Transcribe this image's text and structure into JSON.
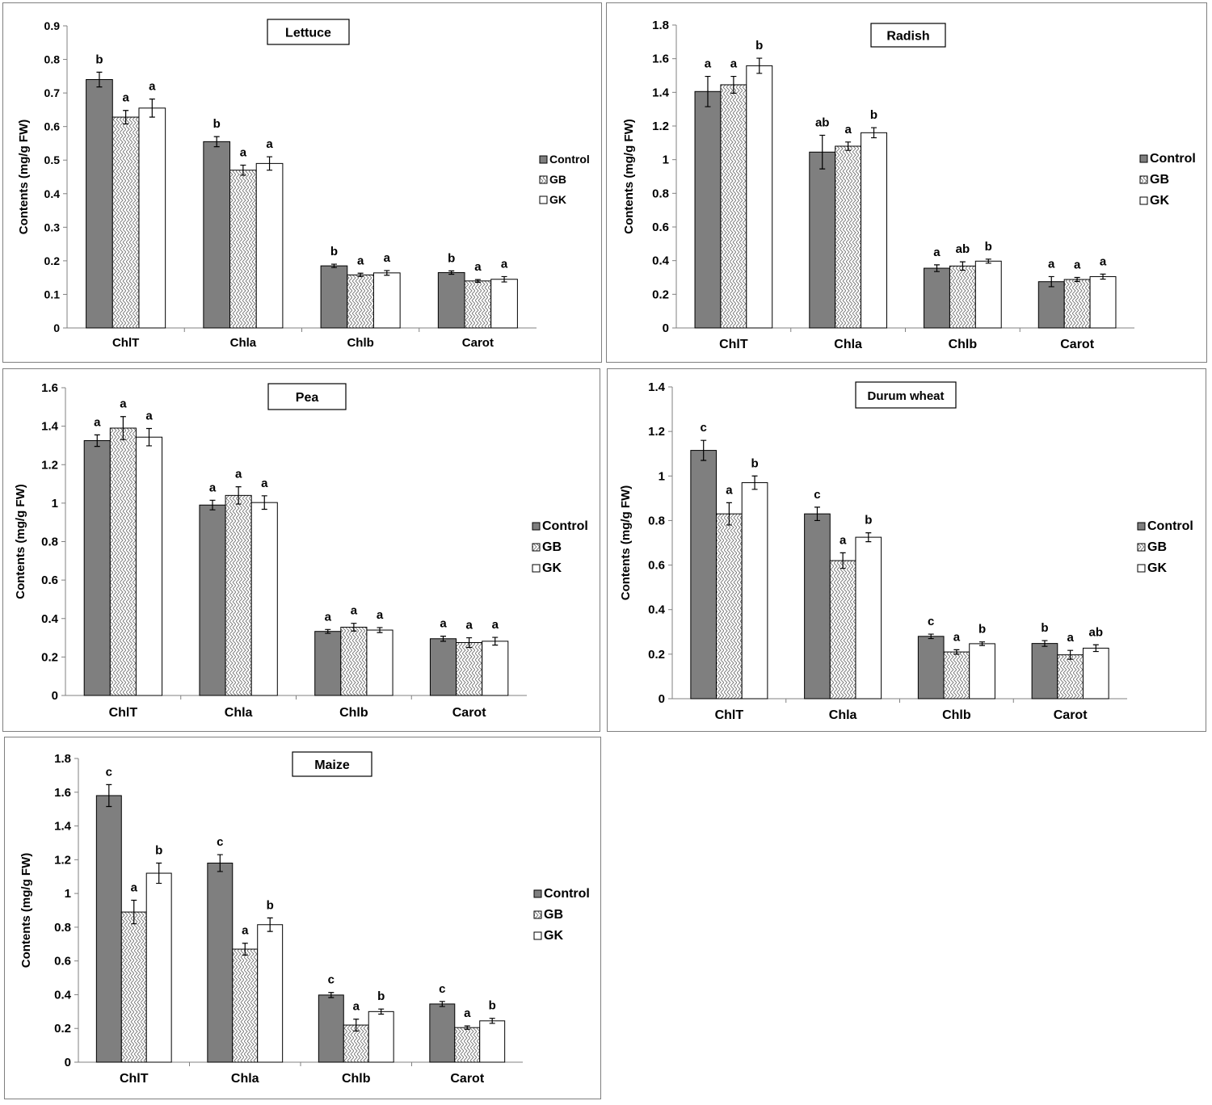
{
  "colors": {
    "control": "#7f7f7f",
    "gb": "#ffffff",
    "gk": "#ffffff",
    "axis": "#808080",
    "border": "#7f7f7f"
  },
  "chart_data": [
    {
      "type": "bar",
      "title": "Lettuce",
      "ylabel": "Contents (mg/g FW)",
      "xlabel": "",
      "ylim": [
        0,
        0.9
      ],
      "yticks": [
        "0",
        "0.1",
        "0.2",
        "0.3",
        "0.4",
        "0.5",
        "0.6",
        "0.7",
        "0.8",
        "0.9"
      ],
      "categories": [
        "ChlT",
        "Chla",
        "Chlb",
        "Carot"
      ],
      "legend": [
        "Control",
        "GB",
        "GK"
      ],
      "series": [
        {
          "name": "Control",
          "values": [
            0.74,
            0.555,
            0.185,
            0.165
          ],
          "errors": [
            0.022,
            0.015,
            0.005,
            0.005
          ],
          "labels": [
            "b",
            "b",
            "b",
            "b"
          ]
        },
        {
          "name": "GB",
          "values": [
            0.628,
            0.47,
            0.158,
            0.14
          ],
          "errors": [
            0.02,
            0.015,
            0.005,
            0.004
          ],
          "labels": [
            "a",
            "a",
            "a",
            "a"
          ]
        },
        {
          "name": "GK",
          "values": [
            0.655,
            0.49,
            0.164,
            0.145
          ],
          "errors": [
            0.027,
            0.02,
            0.007,
            0.008
          ],
          "labels": [
            "a",
            "a",
            "a",
            "a"
          ]
        }
      ]
    },
    {
      "type": "bar",
      "title": "Radish",
      "ylabel": "Contents (mg/g FW)",
      "xlabel": "",
      "ylim": [
        0,
        1.8
      ],
      "yticks": [
        "0",
        "0.2",
        "0.4",
        "0.6",
        "0.8",
        "1",
        "1.2",
        "1.4",
        "1.6",
        "1.8"
      ],
      "categories": [
        "ChlT",
        "Chla",
        "Chlb",
        "Carot"
      ],
      "legend": [
        "Control",
        "GB",
        "GK"
      ],
      "series": [
        {
          "name": "Control",
          "values": [
            1.405,
            1.045,
            0.355,
            0.275
          ],
          "errors": [
            0.09,
            0.1,
            0.02,
            0.03
          ],
          "labels": [
            "a",
            "ab",
            "a",
            "a"
          ]
        },
        {
          "name": "GB",
          "values": [
            1.445,
            1.08,
            0.368,
            0.288
          ],
          "errors": [
            0.05,
            0.025,
            0.025,
            0.012
          ],
          "labels": [
            "a",
            "a",
            "ab",
            "a"
          ]
        },
        {
          "name": "GK",
          "values": [
            1.558,
            1.16,
            0.397,
            0.305
          ],
          "errors": [
            0.045,
            0.03,
            0.012,
            0.015
          ],
          "labels": [
            "b",
            "b",
            "b",
            "a"
          ]
        }
      ]
    },
    {
      "type": "bar",
      "title": "Pea",
      "ylabel": "Contents (mg/g FW)",
      "xlabel": "",
      "ylim": [
        0,
        1.6
      ],
      "yticks": [
        "0",
        "0.2",
        "0.4",
        "0.6",
        "0.8",
        "1",
        "1.2",
        "1.4",
        "1.6"
      ],
      "categories": [
        "ChlT",
        "Chla",
        "Chlb",
        "Carot"
      ],
      "legend": [
        "Control",
        "GB",
        "GK"
      ],
      "series": [
        {
          "name": "Control",
          "values": [
            1.325,
            0.99,
            0.333,
            0.295
          ],
          "errors": [
            0.03,
            0.025,
            0.01,
            0.013
          ],
          "labels": [
            "a",
            "a",
            "a",
            "a"
          ]
        },
        {
          "name": "GB",
          "values": [
            1.39,
            1.04,
            0.355,
            0.275
          ],
          "errors": [
            0.06,
            0.045,
            0.02,
            0.025
          ],
          "labels": [
            "a",
            "a",
            "a",
            "a"
          ]
        },
        {
          "name": "GK",
          "values": [
            1.343,
            1.003,
            0.34,
            0.282
          ],
          "errors": [
            0.045,
            0.035,
            0.013,
            0.02
          ],
          "labels": [
            "a",
            "a",
            "a",
            "a"
          ]
        }
      ]
    },
    {
      "type": "bar",
      "title": "Durum wheat",
      "ylabel": "Contents (mg/g FW)",
      "xlabel": "",
      "ylim": [
        0,
        1.4
      ],
      "yticks": [
        "0",
        "0.2",
        "0.4",
        "0.6",
        "0.8",
        "1",
        "1.2",
        "1.4"
      ],
      "categories": [
        "ChlT",
        "Chla",
        "Chlb",
        "Carot"
      ],
      "legend": [
        "Control",
        "GB",
        "GK"
      ],
      "series": [
        {
          "name": "Control",
          "values": [
            1.115,
            0.83,
            0.28,
            0.248
          ],
          "errors": [
            0.045,
            0.03,
            0.01,
            0.013
          ],
          "labels": [
            "c",
            "c",
            "c",
            "b"
          ]
        },
        {
          "name": "GB",
          "values": [
            0.83,
            0.62,
            0.21,
            0.197
          ],
          "errors": [
            0.05,
            0.035,
            0.01,
            0.02
          ],
          "labels": [
            "a",
            "a",
            "a",
            "a"
          ]
        },
        {
          "name": "GK",
          "values": [
            0.97,
            0.725,
            0.247,
            0.227
          ],
          "errors": [
            0.03,
            0.02,
            0.008,
            0.015
          ],
          "labels": [
            "b",
            "b",
            "b",
            "ab"
          ]
        }
      ]
    },
    {
      "type": "bar",
      "title": "Maize",
      "ylabel": "Contents (mg/g FW)",
      "xlabel": "",
      "ylim": [
        0,
        1.8
      ],
      "yticks": [
        "0",
        "0.2",
        "0.4",
        "0.6",
        "0.8",
        "1",
        "1.2",
        "1.4",
        "1.6",
        "1.8"
      ],
      "categories": [
        "ChlT",
        "Chla",
        "Chlb",
        "Carot"
      ],
      "legend": [
        "Control",
        "GB",
        "GK"
      ],
      "series": [
        {
          "name": "Control",
          "values": [
            1.58,
            1.18,
            0.398,
            0.345
          ],
          "errors": [
            0.065,
            0.05,
            0.015,
            0.015
          ],
          "labels": [
            "c",
            "c",
            "c",
            "c"
          ]
        },
        {
          "name": "GB",
          "values": [
            0.89,
            0.67,
            0.22,
            0.205
          ],
          "errors": [
            0.07,
            0.035,
            0.035,
            0.01
          ],
          "labels": [
            "a",
            "a",
            "a",
            "a"
          ]
        },
        {
          "name": "GK",
          "values": [
            1.12,
            0.815,
            0.3,
            0.245
          ],
          "errors": [
            0.06,
            0.04,
            0.015,
            0.015
          ],
          "labels": [
            "b",
            "b",
            "b",
            "b"
          ]
        }
      ]
    }
  ]
}
